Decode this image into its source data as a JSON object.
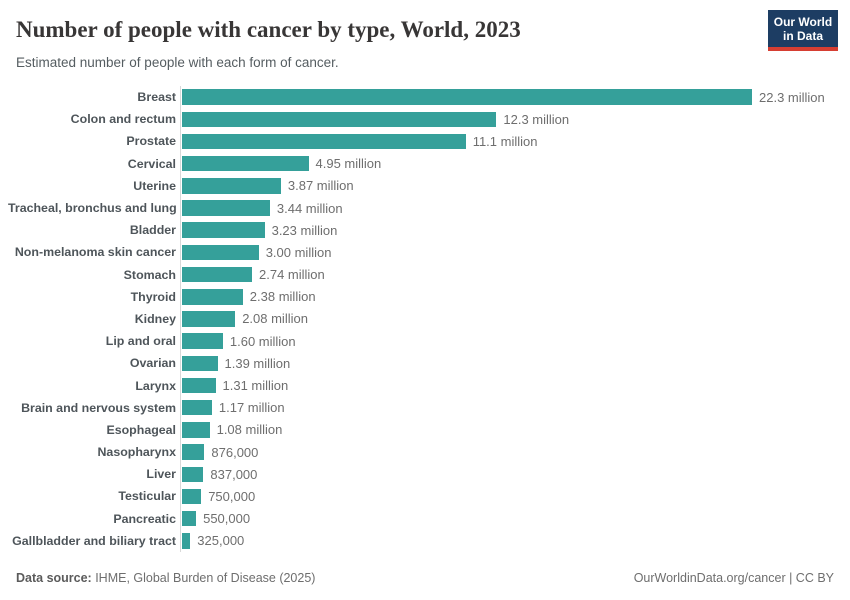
{
  "header": {
    "title": "Number of people with cancer by type, World, 2023",
    "subtitle": "Estimated number of people with each form of cancer.",
    "logo": {
      "line1": "Our World",
      "line2": "in Data"
    }
  },
  "chart_data": {
    "type": "bar",
    "orientation": "horizontal",
    "title": "Number of people with cancer by type, World, 2023",
    "subtitle": "Estimated number of people with each form of cancer.",
    "unit": "people (millions)",
    "xlabel": "",
    "ylabel": "",
    "xlim": [
      0,
      22.3
    ],
    "grid": false,
    "legend": "none",
    "bar_color": "#35a09a",
    "categories": [
      "Breast",
      "Colon and rectum",
      "Prostate",
      "Cervical",
      "Uterine",
      "Tracheal, bronchus and lung",
      "Bladder",
      "Non-melanoma skin cancer",
      "Stomach",
      "Thyroid",
      "Kidney",
      "Lip and oral",
      "Ovarian",
      "Larynx",
      "Brain and nervous system",
      "Esophageal",
      "Nasopharynx",
      "Liver",
      "Testicular",
      "Pancreatic",
      "Gallbladder and biliary tract"
    ],
    "values": [
      22.3,
      12.3,
      11.1,
      4.95,
      3.87,
      3.44,
      3.23,
      3.0,
      2.74,
      2.38,
      2.08,
      1.6,
      1.39,
      1.31,
      1.17,
      1.08,
      0.876,
      0.837,
      0.75,
      0.55,
      0.325
    ],
    "value_labels": [
      "22.3 million",
      "12.3 million",
      "11.1 million",
      "4.95 million",
      "3.87 million",
      "3.44 million",
      "3.23 million",
      "3.00 million",
      "2.74 million",
      "2.38 million",
      "2.08 million",
      "1.60 million",
      "1.39 million",
      "1.31 million",
      "1.17 million",
      "1.08 million",
      "876,000",
      "837,000",
      "750,000",
      "550,000",
      "325,000"
    ]
  },
  "footer": {
    "datasource_label": "Data source:",
    "datasource_text": " IHME, Global Burden of Disease (2025)",
    "credit": "OurWorldinData.org/cancer | CC BY"
  },
  "colors": {
    "bar": "#35a09a",
    "title": "#383636",
    "subtitle": "#555d61",
    "category_label": "#4e555a",
    "value_label": "#6e6e6e",
    "axis_line": "#d9d9d9",
    "logo_navy": "#1d3d63",
    "logo_red": "#d63e32"
  }
}
